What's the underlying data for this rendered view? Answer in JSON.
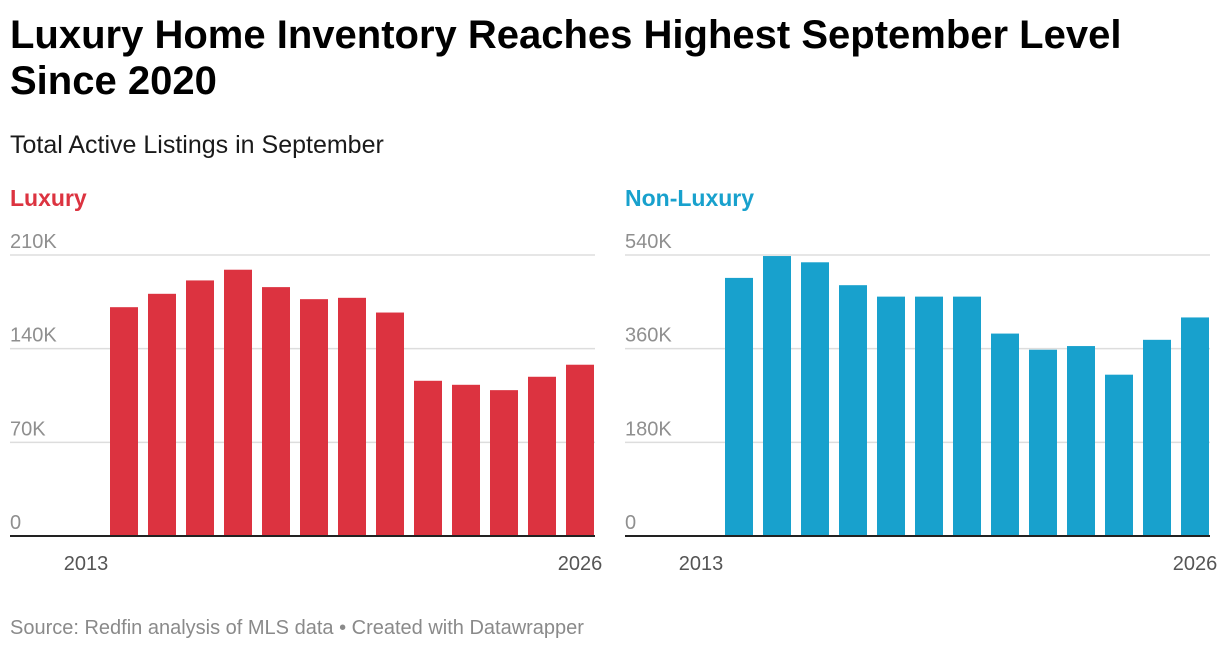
{
  "header": {
    "title": "Luxury Home Inventory Reaches Highest September Level Since 2020",
    "subtitle": "Total Active Listings in September"
  },
  "footer": {
    "source": "Source: Redfin analysis of MLS data • Created with Datawrapper"
  },
  "colors": {
    "luxury": "#dc3340",
    "nonluxury": "#18a1cd",
    "grid": "#dddddd",
    "axis": "#222222"
  },
  "chart_data": [
    {
      "type": "bar",
      "title": "Luxury",
      "categories": [
        "2013",
        "2014",
        "2015",
        "2016",
        "2017",
        "2018",
        "2019",
        "2020",
        "2021",
        "2022",
        "2023",
        "2024",
        "2025",
        "2026"
      ],
      "values": [
        null,
        171000,
        181000,
        191000,
        199000,
        186000,
        177000,
        178000,
        167000,
        116000,
        113000,
        109000,
        119000,
        128000
      ],
      "ylim": [
        0,
        210000
      ],
      "yticks": [
        0,
        70000,
        140000,
        210000
      ],
      "ytick_labels": [
        "0",
        "70K",
        "140K",
        "210K"
      ],
      "xtick_labels": [
        "2013",
        "2026"
      ],
      "grid": true
    },
    {
      "type": "bar",
      "title": "Non-Luxury",
      "categories": [
        "2013",
        "2014",
        "2015",
        "2016",
        "2017",
        "2018",
        "2019",
        "2020",
        "2021",
        "2022",
        "2023",
        "2024",
        "2025",
        "2026"
      ],
      "values": [
        null,
        496000,
        538000,
        526000,
        482000,
        460000,
        460000,
        460000,
        389000,
        358000,
        365000,
        310000,
        377000,
        420000
      ],
      "ylim": [
        0,
        540000
      ],
      "yticks": [
        0,
        180000,
        360000,
        540000
      ],
      "ytick_labels": [
        "0",
        "180K",
        "360K",
        "540K"
      ],
      "xtick_labels": [
        "2013",
        "2026"
      ],
      "grid": true
    }
  ]
}
